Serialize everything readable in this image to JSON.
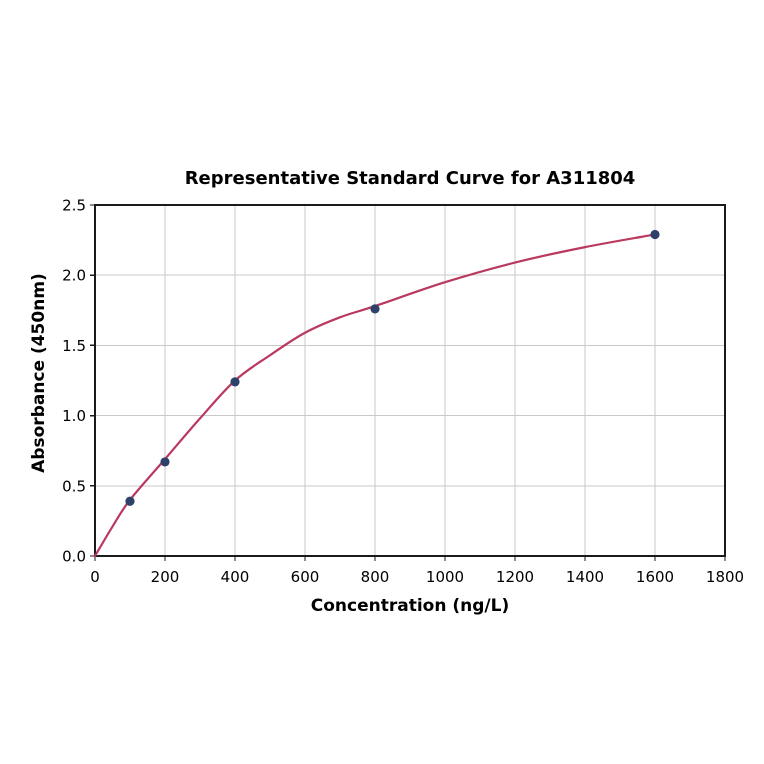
{
  "chart_data": {
    "type": "scatter",
    "title": "Representative Standard Curve for A311804",
    "xlabel": "Concentration (ng/L)",
    "ylabel": "Absorbance (450nm)",
    "xlim": [
      0,
      1800
    ],
    "ylim": [
      0.0,
      2.5
    ],
    "grid": true,
    "legend": null,
    "x_ticks": {
      "values": [
        0,
        200,
        400,
        600,
        800,
        1000,
        1200,
        1400,
        1600,
        1800
      ],
      "labels": [
        "0",
        "200",
        "400",
        "600",
        "800",
        "1000",
        "1200",
        "1400",
        "1600",
        "1800"
      ]
    },
    "y_ticks": {
      "values": [
        0.0,
        0.5,
        1.0,
        1.5,
        2.0,
        2.5
      ],
      "labels": [
        "0.0",
        "0.5",
        "1.0",
        "1.5",
        "2.0",
        "2.5"
      ]
    },
    "points": [
      {
        "x": 100,
        "y": 0.39
      },
      {
        "x": 200,
        "y": 0.67
      },
      {
        "x": 400,
        "y": 1.24
      },
      {
        "x": 800,
        "y": 1.76
      },
      {
        "x": 1600,
        "y": 2.29
      }
    ],
    "fit_curve": [
      {
        "x": 0,
        "y": 0.0
      },
      {
        "x": 50,
        "y": 0.21
      },
      {
        "x": 100,
        "y": 0.4
      },
      {
        "x": 200,
        "y": 0.69
      },
      {
        "x": 300,
        "y": 0.98
      },
      {
        "x": 400,
        "y": 1.25
      },
      {
        "x": 500,
        "y": 1.43
      },
      {
        "x": 600,
        "y": 1.59
      },
      {
        "x": 700,
        "y": 1.7
      },
      {
        "x": 800,
        "y": 1.78
      },
      {
        "x": 1000,
        "y": 1.95
      },
      {
        "x": 1200,
        "y": 2.09
      },
      {
        "x": 1400,
        "y": 2.2
      },
      {
        "x": 1600,
        "y": 2.29
      }
    ],
    "colors": {
      "curve": "#b9395f",
      "marker": "#2e4269",
      "grid": "#c9c9c9",
      "spine": "#1a1a1a",
      "tick": "#1a1a1a",
      "text": "#000000",
      "background": "#ffffff"
    }
  }
}
